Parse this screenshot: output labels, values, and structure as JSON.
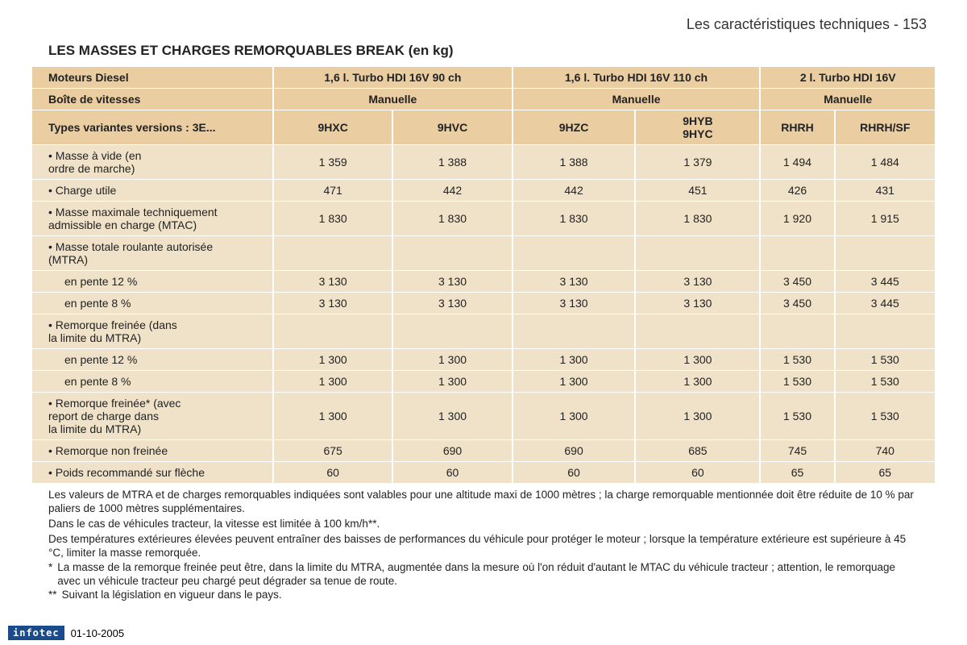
{
  "pageHeader": "Les caractéristiques techniques - 153",
  "sectionTitle": "LES MASSES ET CHARGES REMORQUABLES BREAK (en kg)",
  "colors": {
    "header_bg": "#eacda0",
    "cell_bg": "#f0e2c8",
    "page_bg": "#ffffff",
    "text": "#222222",
    "badge_bg": "#1a4b8c",
    "badge_text": "#ffffff"
  },
  "fonts": {
    "body_size": 14,
    "title_size": 17,
    "header_size": 18,
    "notes_size": 13.5
  },
  "table": {
    "row1": {
      "label": "Moteurs Diesel",
      "groups": [
        "1,6 l. Turbo HDI 16V 90 ch",
        "1,6 l. Turbo HDI 16V 110 ch",
        "2 l. Turbo HDI 16V"
      ]
    },
    "row2": {
      "label": "Boîte de vitesses",
      "groups": [
        "Manuelle",
        "Manuelle",
        "Manuelle"
      ]
    },
    "row3": {
      "label": "Types variantes versions : 3E...",
      "cols": [
        "9HXC",
        "9HVC",
        "9HZC",
        "9HYB\n9HYC",
        "RHRH",
        "RHRH/SF"
      ]
    },
    "data": [
      {
        "label": "• Masse à vide (en\n  ordre de marche)",
        "vals": [
          "1 359",
          "1 388",
          "1 388",
          "1 379",
          "1 494",
          "1 484"
        ]
      },
      {
        "label": "• Charge utile",
        "vals": [
          "471",
          "442",
          "442",
          "451",
          "426",
          "431"
        ]
      },
      {
        "label": "• Masse maximale techniquement\n  admissible en charge (MTAC)",
        "vals": [
          "1 830",
          "1 830",
          "1 830",
          "1 830",
          "1 920",
          "1 915"
        ]
      },
      {
        "label": "• Masse totale roulante autorisée\n  (MTRA)",
        "vals": [
          "",
          "",
          "",
          "",
          "",
          ""
        ]
      },
      {
        "label": "en pente 12 %",
        "sub": true,
        "vals": [
          "3 130",
          "3 130",
          "3 130",
          "3 130",
          "3 450",
          "3 445"
        ]
      },
      {
        "label": "en pente 8 %",
        "sub": true,
        "vals": [
          "3 130",
          "3 130",
          "3 130",
          "3 130",
          "3 450",
          "3 445"
        ]
      },
      {
        "label": "• Remorque freinée (dans\n  la limite du MTRA)",
        "vals": [
          "",
          "",
          "",
          "",
          "",
          ""
        ]
      },
      {
        "label": "en pente 12 %",
        "sub": true,
        "vals": [
          "1 300",
          "1 300",
          "1 300",
          "1 300",
          "1 530",
          "1 530"
        ]
      },
      {
        "label": "en pente 8 %",
        "sub": true,
        "vals": [
          "1 300",
          "1 300",
          "1 300",
          "1 300",
          "1 530",
          "1 530"
        ]
      },
      {
        "label": "• Remorque freinée* (avec\n  report de charge dans\n  la limite du MTRA)",
        "vals": [
          "1 300",
          "1 300",
          "1 300",
          "1 300",
          "1 530",
          "1 530"
        ]
      },
      {
        "label": "• Remorque non freinée",
        "vals": [
          "675",
          "690",
          "690",
          "685",
          "745",
          "740"
        ]
      },
      {
        "label": "• Poids recommandé sur flèche",
        "vals": [
          "60",
          "60",
          "60",
          "60",
          "65",
          "65"
        ]
      }
    ]
  },
  "notes": [
    "Les valeurs de MTRA et de charges remorquables indiquées sont valables pour une altitude maxi de 1000 mètres ; la charge remorquable mentionnée doit être réduite de 10 % par paliers de 1000 mètres supplémentaires.",
    "Dans le cas de véhicules tracteur, la vitesse est limitée à 100 km/h**.",
    "Des températures extérieures élevées peuvent entraîner des baisses de performances du véhicule pour protéger le moteur ; lorsque la température extérieure est supérieure à 45 °C, limiter la masse remorquée."
  ],
  "footnotes": {
    "star1": "*",
    "star1_text": "La masse de la remorque freinée peut être, dans la limite du MTRA, augmentée dans la mesure où l'on réduit d'autant le MTAC du véhicule tracteur ; attention, le remorquage avec un véhicule tracteur peu chargé peut dégrader sa tenue de route.",
    "star2": "**",
    "star2_text": "Suivant la législation en vigueur dans le pays."
  },
  "footer": {
    "badge": "infotec",
    "date": "01-10-2005"
  }
}
